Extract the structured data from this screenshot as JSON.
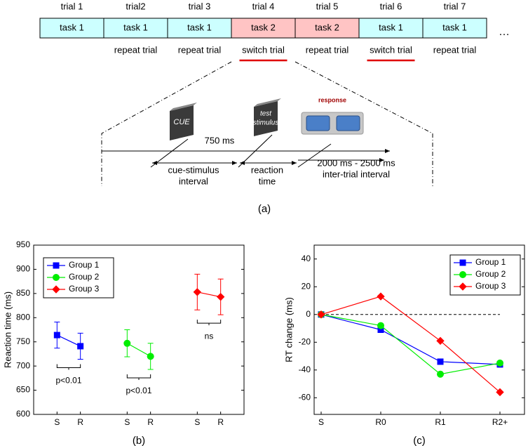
{
  "diagram": {
    "trials": [
      {
        "label": "trial 1",
        "task": "task 1",
        "type": null
      },
      {
        "label": "trial2",
        "task": "task 1",
        "type": "repeat trial"
      },
      {
        "label": "trial 3",
        "task": "task 1",
        "type": "repeat trial"
      },
      {
        "label": "trial 4",
        "task": "task 2",
        "type": "switch trial"
      },
      {
        "label": "trial 5",
        "task": "task 2",
        "type": "repeat trial"
      },
      {
        "label": "trial 6",
        "task": "task 1",
        "type": "switch trial"
      },
      {
        "label": "trial 7",
        "task": "task 1",
        "type": "repeat trial"
      }
    ],
    "task_colors": {
      "task 1": "#ccffff",
      "task 2": "#ffc4c4"
    },
    "ellipsis": "…",
    "cue": "CUE",
    "stimulus": [
      "test",
      "stimulus"
    ],
    "response": "response",
    "delay": "750 ms",
    "cue_stimulus_interval": [
      "cue-stimulus",
      "interval"
    ],
    "reaction_time": [
      "reaction",
      "time"
    ],
    "inter_trial_interval": [
      "2000 ms - 2500 ms",
      "inter-trial interval"
    ],
    "caption": "(a)"
  },
  "chart_data": [
    {
      "type": "line",
      "caption": "(b)",
      "y_label": "Reaction time (ms)",
      "xlim": [
        0,
        9
      ],
      "xticks": [
        {
          "value": 1,
          "label": "S"
        },
        {
          "value": 2,
          "label": "R"
        },
        {
          "value": 4,
          "label": "S"
        },
        {
          "value": 5,
          "label": "R"
        },
        {
          "value": 7,
          "label": "S"
        },
        {
          "value": 8,
          "label": "R"
        }
      ],
      "ylim": [
        600,
        950
      ],
      "yticks": [
        600,
        650,
        700,
        750,
        800,
        850,
        900,
        950
      ],
      "legend": "upper left",
      "series": [
        {
          "name": "Group 1",
          "color": "#0000ff",
          "marker": "square",
          "x": [
            1,
            2
          ],
          "values": [
            764,
            741
          ],
          "errors": [
            27,
            27
          ]
        },
        {
          "name": "Group 2",
          "color": "#00ee00",
          "marker": "circle",
          "x": [
            4,
            5
          ],
          "values": [
            747,
            720
          ],
          "errors": [
            28,
            27
          ]
        },
        {
          "name": "Group 3",
          "color": "#ff0000",
          "marker": "diamond",
          "x": [
            7,
            8
          ],
          "values": [
            853,
            843
          ],
          "errors": [
            37,
            37
          ]
        }
      ],
      "annotations": [
        "p<0.01",
        "p<0.01",
        "ns"
      ]
    },
    {
      "type": "line",
      "caption": "(c)",
      "y_label": "RT change (ms)",
      "categories": [
        "S",
        "R0",
        "R1",
        "R2+"
      ],
      "ylim": [
        -72,
        50
      ],
      "yticks": [
        -60,
        -40,
        -20,
        0,
        20,
        40
      ],
      "reference_line": 0,
      "legend": "upper right",
      "series": [
        {
          "name": "Group 1",
          "color": "#0000ff",
          "marker": "square",
          "values": [
            0,
            -11,
            -34,
            -36
          ]
        },
        {
          "name": "Group 2",
          "color": "#00ee00",
          "marker": "circle",
          "values": [
            0,
            -8,
            -43,
            -35
          ]
        },
        {
          "name": "Group 3",
          "color": "#ff0000",
          "marker": "diamond",
          "values": [
            0,
            13,
            -19,
            -56
          ]
        }
      ]
    }
  ]
}
